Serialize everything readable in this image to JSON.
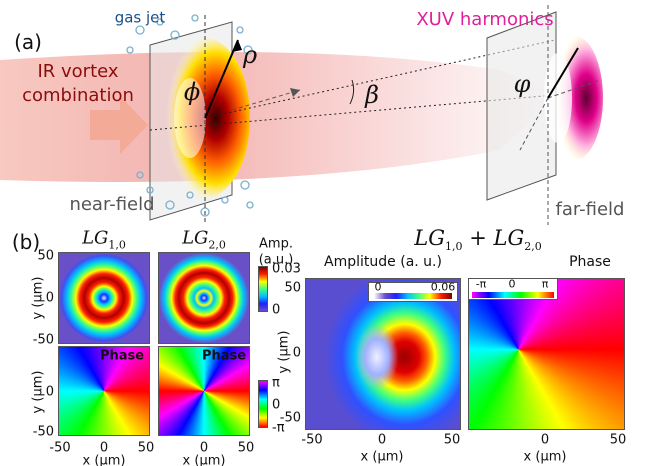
{
  "panel_a": {
    "label": "(a)",
    "gas_jet": "gas jet",
    "ir_label": [
      "IR vortex",
      "combination"
    ],
    "near_field": "near-field",
    "xuv": "XUV harmonics",
    "far_field": "far-field",
    "symbols": {
      "rho": "ρ",
      "phi": "ϕ",
      "beta": "β",
      "varphi": "φ"
    }
  },
  "panel_b": {
    "label": "(b)",
    "lg10": {
      "base": "LG",
      "sub": "1,0"
    },
    "lg20": {
      "base": "LG",
      "sub": "2,0"
    },
    "combined": {
      "left": {
        "base": "LG",
        "sub": "1,0"
      },
      "op": "+",
      "right": {
        "base": "LG",
        "sub": "2,0"
      }
    },
    "amp_colorbar": {
      "title": [
        "Amp.",
        "(a.u.)"
      ],
      "ticks": [
        "0.03",
        "0"
      ]
    },
    "phase_colorbar": {
      "ticks": [
        "π",
        "0",
        "-π"
      ]
    },
    "small_maps": [
      {
        "y_label": "y (μm)",
        "y_ticks": [
          "50",
          "0",
          "-50"
        ]
      },
      {},
      {
        "label": "Phase",
        "y_label": "y (μm)",
        "y_ticks": [
          "0",
          "-50"
        ],
        "x_label": "x (μm)",
        "x_ticks": [
          "-50",
          "0",
          "50"
        ]
      },
      {
        "label": "Phase",
        "x_label": "x (μm)",
        "x_ticks": [
          "0",
          "50"
        ]
      }
    ],
    "big_maps": [
      {
        "label": "Amplitude (a. u.)",
        "colorbar_ticks": [
          "0",
          "0.06"
        ],
        "y_label": "y (μm)",
        "y_ticks": [
          "50",
          "0",
          "-50"
        ],
        "x_label": "x (μm)",
        "x_ticks": [
          "-50",
          "0",
          "50"
        ]
      },
      {
        "label": "Phase",
        "colorbar_ticks": [
          "-π",
          "0",
          "π"
        ],
        "x_label": "x (μm)",
        "x_ticks": [
          "0",
          "50"
        ]
      }
    ]
  }
}
